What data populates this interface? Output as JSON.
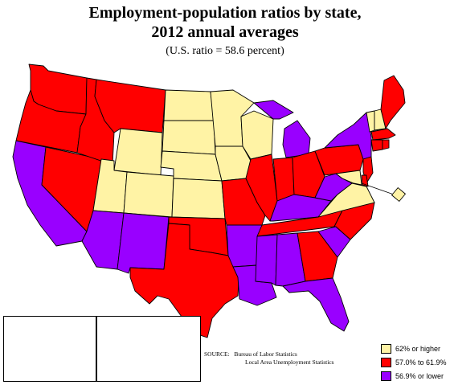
{
  "title_line1": "Employment-population ratios by state,",
  "title_line2": "2012 annual averages",
  "subtitle": "(U.S. ratio = 58.6 percent)",
  "source": {
    "label": "SOURCE:",
    "line1": "Bureau of Labor Statistics",
    "line2": "Local Area Unemployment Statistics"
  },
  "colors": {
    "high": "#fff3a5",
    "mid": "#ff0000",
    "low": "#9900ff"
  },
  "legend": [
    {
      "key": "high",
      "label": "62% or higher"
    },
    {
      "key": "mid",
      "label": "57.0% to 61.9%"
    },
    {
      "key": "low",
      "label": "56.9% or lower"
    }
  ],
  "states": {
    "WA": "mid",
    "OR": "mid",
    "CA": "low",
    "NV": "mid",
    "ID": "mid",
    "MT": "mid",
    "WY": "high",
    "UT": "high",
    "CO": "high",
    "AZ": "low",
    "NM": "low",
    "ND": "high",
    "SD": "high",
    "NE": "high",
    "KS": "high",
    "OK": "mid",
    "TX": "mid",
    "MN": "high",
    "IA": "high",
    "MO": "mid",
    "AR": "low",
    "LA": "low",
    "WI": "high",
    "IL": "mid",
    "MI": "low",
    "IN": "mid",
    "OH": "mid",
    "KY": "low",
    "TN": "mid",
    "MS": "low",
    "AL": "low",
    "GA": "mid",
    "FL": "low",
    "SC": "low",
    "NC": "mid",
    "VA": "high",
    "WV": "low",
    "PA": "mid",
    "NY": "low",
    "VT": "high",
    "NH": "high",
    "ME": "mid",
    "MA": "mid",
    "CT": "mid",
    "RI": "mid",
    "NJ": "mid",
    "DE": "mid",
    "MD": "high",
    "DC": "high",
    "AK": "high",
    "HI": "mid"
  }
}
